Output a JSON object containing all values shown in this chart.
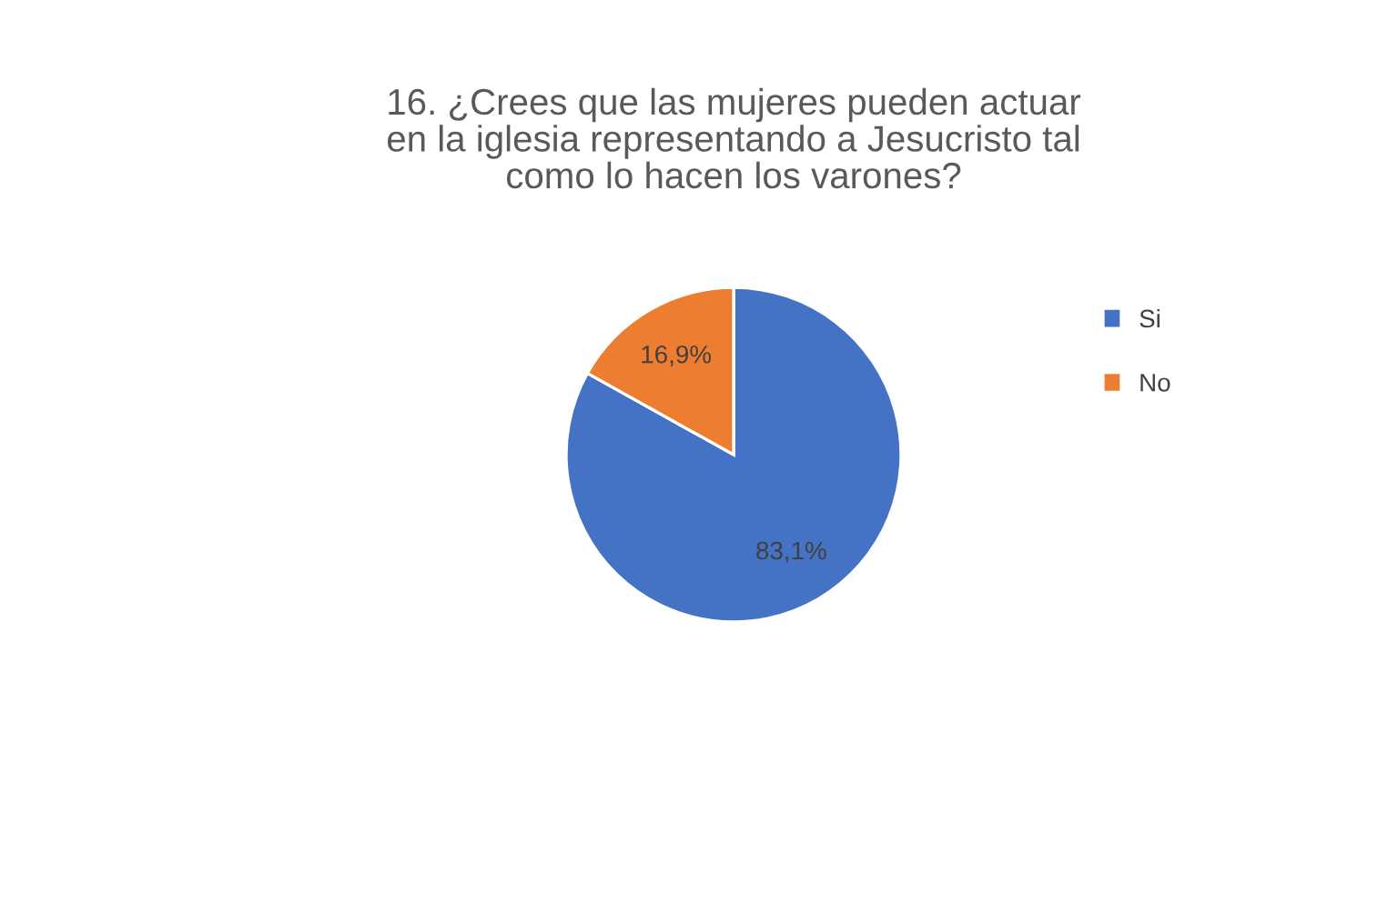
{
  "chart_data": {
    "type": "pie",
    "title": "16. ¿Crees que las mujeres pueden actuar\nen la iglesia representando a Jesucristo tal\ncomo lo hacen los varones?",
    "categories": [
      "Si",
      "No"
    ],
    "values": [
      83.1,
      16.9
    ],
    "value_labels": [
      "83,1%",
      "16,9%"
    ],
    "colors": [
      "#4472c4",
      "#ed7d31"
    ],
    "legend": "right"
  }
}
